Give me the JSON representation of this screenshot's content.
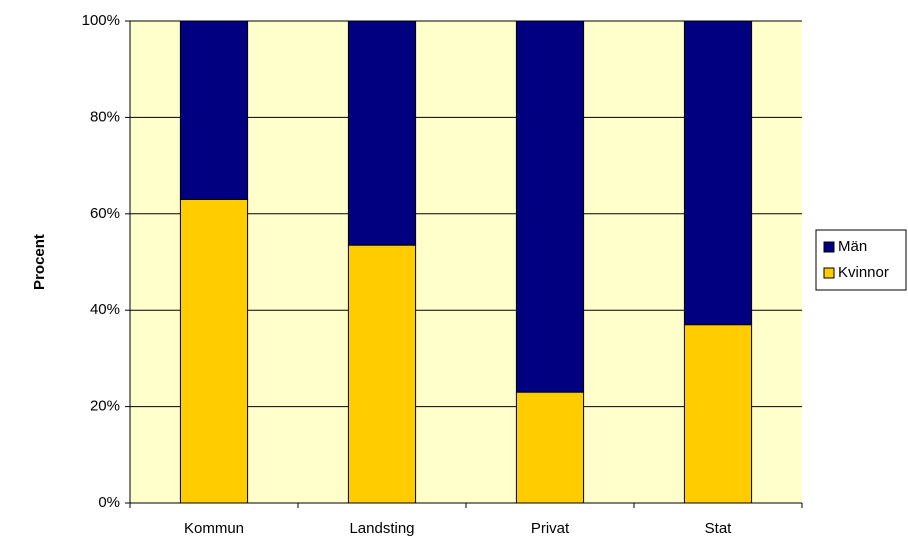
{
  "chart_data": {
    "type": "stacked_bar",
    "y_label": "Procent",
    "categories": [
      "Kommun",
      "Landsting",
      "Privat",
      "Stat"
    ],
    "series": [
      {
        "name": "Kvinnor",
        "color": "#ffcc00",
        "values": [
          63,
          53.5,
          23,
          37
        ]
      },
      {
        "name": "Män",
        "color": "#000080",
        "values": [
          37,
          46.5,
          77,
          63
        ]
      }
    ],
    "ylim": [
      0,
      100
    ],
    "yticks": [
      {
        "value": 0,
        "label": "0%"
      },
      {
        "value": 20,
        "label": "20%"
      },
      {
        "value": 40,
        "label": "40%"
      },
      {
        "value": 60,
        "label": "60%"
      },
      {
        "value": 80,
        "label": "80%"
      },
      {
        "value": 100,
        "label": "100%"
      }
    ],
    "grid": true,
    "legend": "right",
    "plot_background": "#ffffcc"
  }
}
